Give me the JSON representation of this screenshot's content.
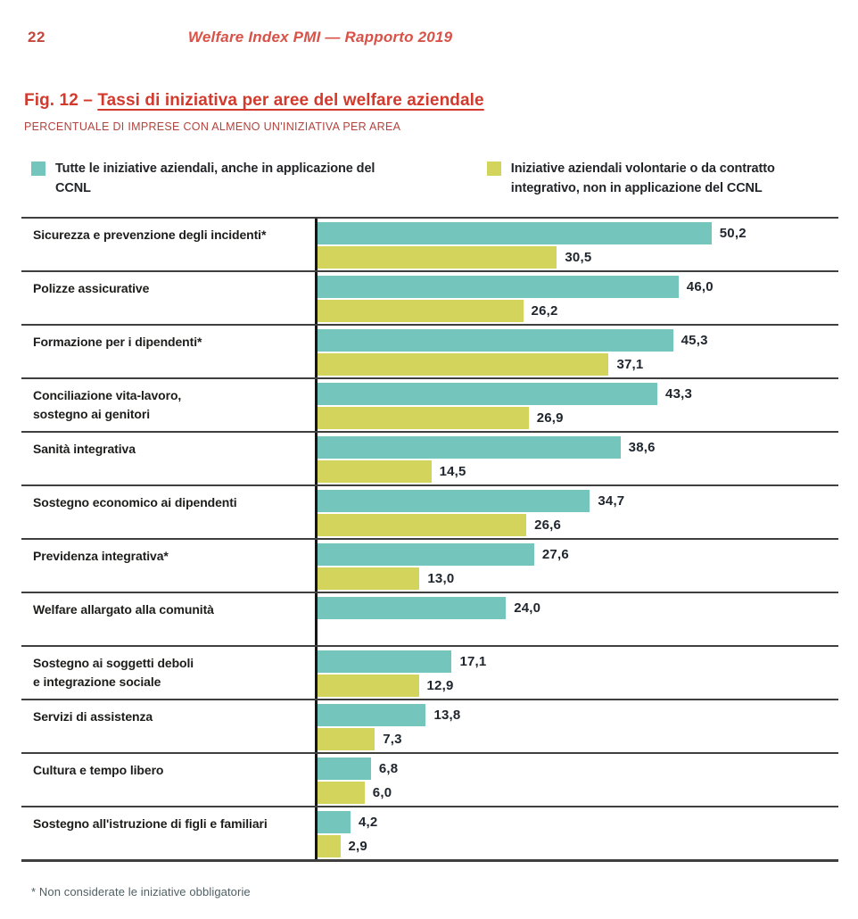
{
  "page": {
    "number": "22",
    "header_title": "Welfare Index PMI — Rapporto 2019"
  },
  "figure": {
    "label": "Fig. 12 – ",
    "title": "Tassi di iniziativa per aree del welfare aziendale",
    "subtitle": "PERCENTUALE DI IMPRESE CON ALMENO UN'INIZIATIVA PER AREA"
  },
  "legend": [
    {
      "name": "teal-series",
      "color": "#74c6bd",
      "label": "Tutte le iniziative aziendali, anche in applicazione del CCNL"
    },
    {
      "name": "yellow-series",
      "color": "#d2d45c",
      "label": "Iniziative aziendali volontarie o da contratto integrativo, non in applicazione del CCNL"
    }
  ],
  "chart_data": {
    "type": "bar",
    "orientation": "horizontal",
    "unit": "%",
    "xlim": [
      0,
      64
    ],
    "grid": false,
    "legend_position": "top",
    "title": "Tassi di iniziativa per aree del welfare aziendale",
    "xlabel": "",
    "ylabel": "",
    "categories": [
      "Sicurezza e prevenzione degli incidenti*",
      "Polizze assicurative",
      "Formazione per i dipendenti*",
      "Conciliazione vita-lavoro,\nsostegno ai genitori",
      "Sanità integrativa",
      "Sostegno economico ai dipendenti",
      "Previdenza integrativa*",
      "Welfare allargato alla comunità",
      "Sostegno ai soggetti deboli\ne integrazione sociale",
      "Servizi di assistenza",
      "Cultura e tempo libero",
      "Sostegno all'istruzione di figli e familiari"
    ],
    "series": [
      {
        "name": "Tutte le iniziative aziendali, anche in applicazione del CCNL",
        "color": "#74c6bd",
        "values": [
          50.2,
          46.0,
          45.3,
          43.3,
          38.6,
          34.7,
          27.6,
          24.0,
          17.1,
          13.8,
          6.8,
          4.2
        ]
      },
      {
        "name": "Iniziative aziendali volontarie o da contratto integrativo, non in applicazione del CCNL",
        "color": "#d2d45c",
        "values": [
          30.5,
          26.2,
          37.1,
          26.9,
          14.5,
          26.6,
          13.0,
          null,
          12.9,
          7.3,
          6.0,
          2.9
        ]
      }
    ],
    "value_labels": [
      [
        "50,2",
        "30,5"
      ],
      [
        "46,0",
        "26,2"
      ],
      [
        "45,3",
        "37,1"
      ],
      [
        "43,3",
        "26,9"
      ],
      [
        "38,6",
        "14,5"
      ],
      [
        "34,7",
        "26,6"
      ],
      [
        "27,6",
        "13,0"
      ],
      [
        "24,0",
        null
      ],
      [
        "17,1",
        "12,9"
      ],
      [
        "13,8",
        "7,3"
      ],
      [
        "6,8",
        "6,0"
      ],
      [
        "4,2",
        "2,9"
      ]
    ]
  },
  "footnote": "* Non considerate le iniziative obbligatorie"
}
